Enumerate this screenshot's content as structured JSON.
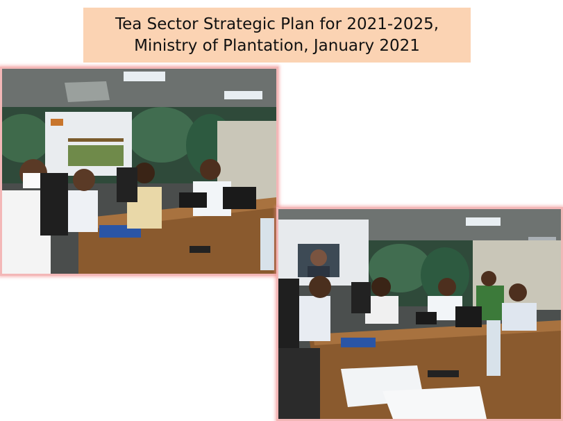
{
  "slide": {
    "title_line1": "Tea Sector Strategic Plan for 2021-2025,",
    "title_line2": "Ministry of Plantation, January 2021"
  },
  "photos": [
    {
      "name": "meeting-photo-1",
      "subject": "meeting room with projector screen and attendees"
    },
    {
      "name": "meeting-photo-2",
      "subject": "meeting room with video call on screen and attendees"
    }
  ],
  "colors": {
    "title_background": "#fbd3b3",
    "photo_border": "#f3b7b7"
  }
}
